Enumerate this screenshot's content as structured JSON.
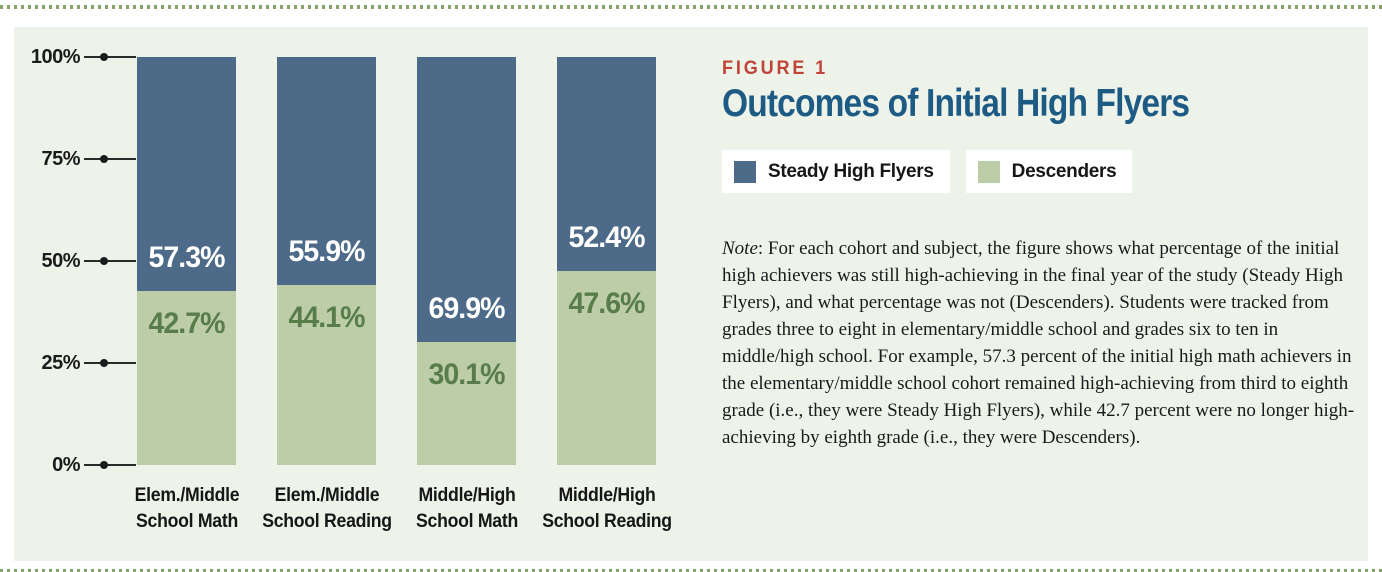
{
  "page": {
    "background": "#ffffff",
    "panel_background": "#eef3ea",
    "dotted_border_color": "#84a168"
  },
  "figure": {
    "label": "FIGURE 1",
    "label_color": "#bf4437",
    "title": "Outcomes of Initial High Flyers",
    "title_color": "#1d5b85"
  },
  "legend": [
    {
      "name": "Steady High Flyers",
      "color": "#4d6a88"
    },
    {
      "name": "Descenders",
      "color": "#bccda8"
    }
  ],
  "note": {
    "label": "Note",
    "text": ": For each cohort and subject, the figure shows what percentage of the initial high achievers was still high-achieving in the final year of the study (Steady High Flyers), and what percentage was not (Descenders). Students were tracked from grades three to eight in elementary/middle school and grades six to ten in middle/high school. For example, 57.3 percent of the initial high math achievers in the elementary/middle school cohort remained high-achieving from third to eighth grade (i.e., they were Steady High Flyers), while 42.7 percent were no longer high-achieving by eighth grade (i.e., they were Descenders)."
  },
  "chart_data": {
    "type": "bar",
    "subtype": "stacked-percentage",
    "categories": [
      "Elem./Middle\nSchool Math",
      "Elem./Middle\nSchool Reading",
      "Middle/High\nSchool Math",
      "Middle/High\nSchool Reading"
    ],
    "series": [
      {
        "name": "Steady High Flyers",
        "position": "top",
        "color": "#4d6a88",
        "label_color": "#ffffff",
        "values": [
          57.3,
          55.9,
          69.9,
          52.4
        ],
        "labels": [
          "57.3%",
          "55.9%",
          "69.9%",
          "52.4%"
        ]
      },
      {
        "name": "Descenders",
        "position": "bottom",
        "color": "#bccda8",
        "label_color": "#587d4b",
        "values": [
          42.7,
          44.1,
          30.1,
          47.6
        ],
        "labels": [
          "42.7%",
          "44.1%",
          "30.1%",
          "47.6%"
        ]
      }
    ],
    "y_ticks": [
      {
        "label": "100%",
        "value": 100
      },
      {
        "label": "75%",
        "value": 75
      },
      {
        "label": "50%",
        "value": 50
      },
      {
        "label": "25%",
        "value": 25
      },
      {
        "label": "0%",
        "value": 0
      }
    ],
    "ylim": [
      0,
      100
    ],
    "value_suffix": "%",
    "grid": false,
    "legend_position": "top-right",
    "title": "Outcomes of Initial High Flyers"
  }
}
